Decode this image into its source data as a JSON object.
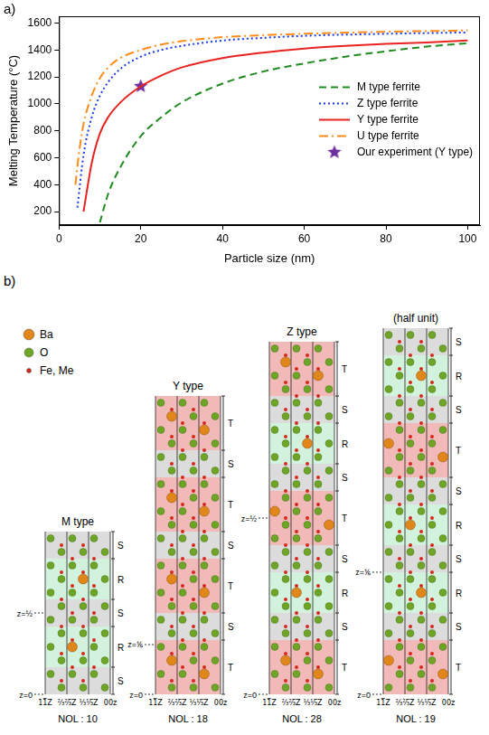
{
  "chart_data": {
    "type": "line",
    "panel_label": "a)",
    "x_label": "Particle size (nm)",
    "y_label": "Melting Temperature (°C)",
    "xlim": [
      0,
      103
    ],
    "xticks": [
      0,
      20,
      40,
      60,
      80,
      100
    ],
    "ylim": [
      100,
      1650
    ],
    "yticks": [
      200,
      400,
      600,
      800,
      1000,
      1200,
      1400,
      1600
    ],
    "grid": false,
    "legend": "center right",
    "series": [
      {
        "name": "M type ferrite",
        "color": "#1f8a1f",
        "line_style": "dashed",
        "marker": "none",
        "x": [
          10,
          12,
          15,
          20,
          25,
          30,
          40,
          50,
          60,
          70,
          80,
          90,
          100
        ],
        "values": [
          120,
          330,
          530,
          760,
          900,
          1010,
          1150,
          1240,
          1300,
          1350,
          1390,
          1425,
          1450
        ]
      },
      {
        "name": "Z type ferrite",
        "color": "#1a3be6",
        "line_style": "dotted",
        "marker": "none",
        "x": [
          4.5,
          6,
          8,
          10,
          12,
          15,
          20,
          25,
          30,
          40,
          50,
          60,
          80,
          100
        ],
        "values": [
          230,
          620,
          900,
          1060,
          1160,
          1260,
          1350,
          1400,
          1430,
          1470,
          1490,
          1505,
          1520,
          1530
        ]
      },
      {
        "name": "Y type ferrite",
        "color": "#e8231f",
        "line_style": "solid",
        "marker": "none",
        "x": [
          6,
          8,
          10,
          12,
          15,
          20,
          25,
          30,
          40,
          50,
          60,
          70,
          80,
          90,
          100
        ],
        "values": [
          200,
          560,
          780,
          900,
          1010,
          1130,
          1210,
          1270,
          1340,
          1380,
          1410,
          1430,
          1445,
          1455,
          1470
        ]
      },
      {
        "name": "U type ferrite",
        "color": "#ff8c1a",
        "line_style": "dashdot",
        "marker": "none",
        "x": [
          4,
          5,
          6,
          8,
          10,
          12,
          15,
          20,
          25,
          30,
          40,
          50,
          60,
          80,
          100
        ],
        "values": [
          400,
          660,
          850,
          1060,
          1190,
          1270,
          1340,
          1400,
          1440,
          1465,
          1495,
          1510,
          1520,
          1535,
          1545
        ]
      },
      {
        "name": "Our experiment (Y type)",
        "color": "#7030a0",
        "line_style": "none",
        "marker": "star",
        "x": [
          20
        ],
        "values": [
          1130
        ]
      }
    ]
  },
  "diagram": {
    "panel_label": "b)",
    "legend": [
      {
        "label": "Ba",
        "color": "#e0861a"
      },
      {
        "label": "O",
        "color": "#6fa526"
      },
      {
        "label": "Fe, Me",
        "color": "#d42a1e"
      }
    ],
    "axis_labels": [
      "11̅Z",
      "⅔⅔̅Z",
      "⅓⅓̅Z",
      "00z"
    ],
    "block_colors": {
      "S": "#dcdcdc",
      "R": "#d3f2de",
      "T": "#f2b9b9"
    },
    "structures": [
      {
        "title": "M type",
        "nol": "NOL : 10",
        "blocks": [
          "S",
          "R",
          "S",
          "R",
          "S"
        ],
        "z_span": 1,
        "z_marks": [
          {
            "value": 0.5,
            "label": "z=½"
          },
          {
            "value": 0,
            "label": "z=0"
          }
        ]
      },
      {
        "title": "Y type",
        "nol": "NOL : 18",
        "blocks": [
          "T",
          "S",
          "T",
          "S",
          "T",
          "S",
          "T"
        ],
        "z_span": 1,
        "z_marks": [
          {
            "value": 0.1667,
            "label": "z=⅙"
          },
          {
            "value": 0,
            "label": "z=0"
          }
        ]
      },
      {
        "title": "Z type",
        "nol": "NOL : 28",
        "blocks": [
          "T",
          "S",
          "R",
          "S",
          "T",
          "S",
          "R",
          "S",
          "T"
        ],
        "z_span": 1,
        "z_marks": [
          {
            "value": 0.5,
            "label": "z=½"
          },
          {
            "value": 0,
            "label": "z=0"
          }
        ]
      },
      {
        "title": "(half unit)",
        "nol": "NOL : 19",
        "blocks": [
          "S",
          "R",
          "S",
          "T",
          "S",
          "R",
          "S",
          "R",
          "S",
          "T"
        ],
        "z_span": 0.5,
        "z_marks": [
          {
            "value": 0.1667,
            "label": "z=⅙"
          },
          {
            "value": 0,
            "label": "z=0"
          }
        ]
      }
    ]
  }
}
